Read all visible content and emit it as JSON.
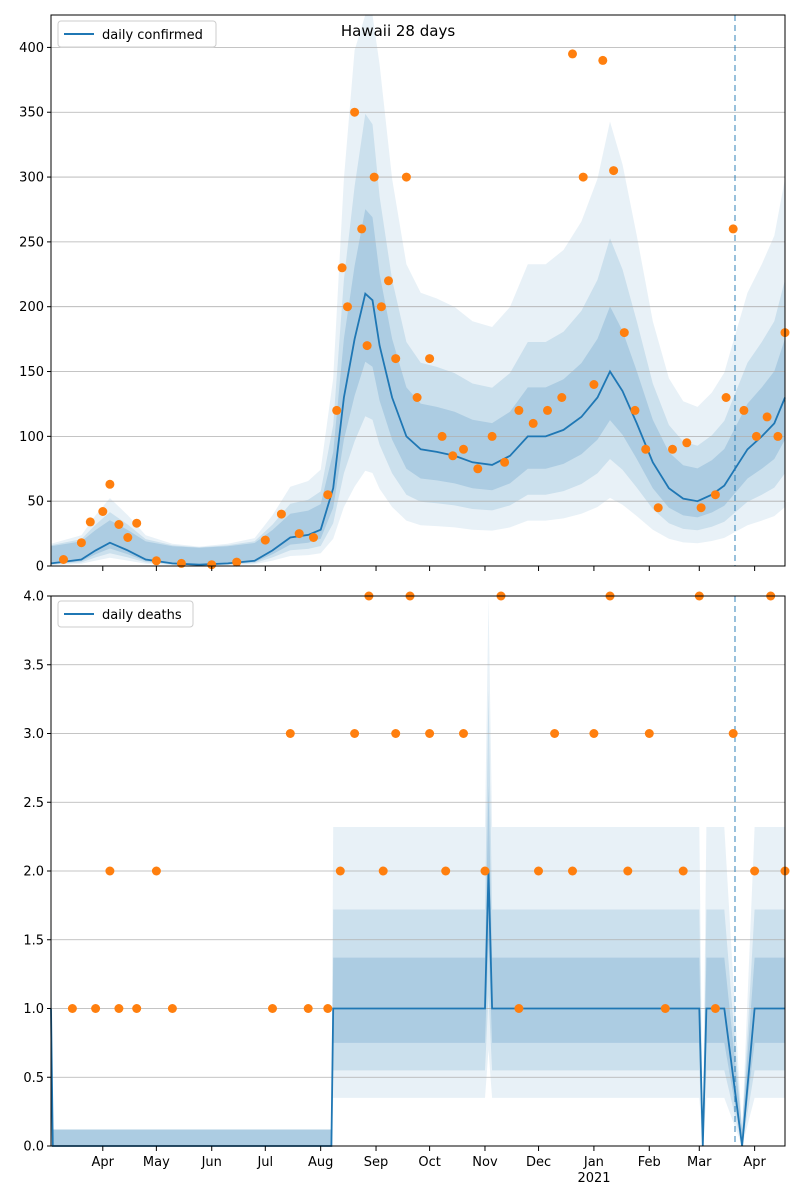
{
  "title": "Hawaii 28 days",
  "colors": {
    "line": "#1f77b4",
    "points": "#ff7f0e",
    "band": "#1f77b4",
    "grid": "#b0b0b0",
    "axis": "#000000"
  },
  "x_axis": {
    "month_ticks": [
      "Apr",
      "May",
      "Jun",
      "Jul",
      "Aug",
      "Sep",
      "Oct",
      "Nov",
      "Dec",
      "Jan",
      "Feb",
      "Mar",
      "Apr"
    ],
    "year_label": "2021",
    "date_range": [
      "2020-03-03",
      "2021-04-18"
    ],
    "forecast_start": "2021-03-21"
  },
  "chart_data": [
    {
      "type": "line",
      "legend": "daily confirmed",
      "ylim": [
        0,
        425
      ],
      "yticks": [
        0,
        50,
        100,
        150,
        200,
        250,
        300,
        350,
        400
      ],
      "grid": "horizontal",
      "legend_position": "top-left",
      "series": [
        {
          "name": "daily confirmed",
          "role": "smoothed line",
          "x": [
            "2020-03-03",
            "2020-03-20",
            "2020-03-28",
            "2020-04-05",
            "2020-04-15",
            "2020-04-25",
            "2020-05-10",
            "2020-05-25",
            "2020-06-10",
            "2020-06-25",
            "2020-07-05",
            "2020-07-15",
            "2020-07-25",
            "2020-08-01",
            "2020-08-08",
            "2020-08-14",
            "2020-08-20",
            "2020-08-26",
            "2020-08-30",
            "2020-09-03",
            "2020-09-10",
            "2020-09-18",
            "2020-09-26",
            "2020-10-05",
            "2020-10-15",
            "2020-10-25",
            "2020-11-05",
            "2020-11-15",
            "2020-11-25",
            "2020-12-05",
            "2020-12-15",
            "2020-12-25",
            "2021-01-03",
            "2021-01-10",
            "2021-01-17",
            "2021-01-25",
            "2021-02-03",
            "2021-02-12",
            "2021-02-20",
            "2021-02-28",
            "2021-03-08",
            "2021-03-15",
            "2021-03-21",
            "2021-03-28",
            "2021-04-05",
            "2021-04-12",
            "2021-04-18"
          ],
          "y": [
            2,
            5,
            12,
            18,
            12,
            5,
            2,
            1,
            2,
            4,
            12,
            22,
            24,
            28,
            60,
            130,
            175,
            210,
            205,
            170,
            130,
            100,
            90,
            88,
            85,
            80,
            78,
            85,
            100,
            100,
            105,
            115,
            130,
            150,
            135,
            110,
            80,
            60,
            52,
            50,
            55,
            62,
            75,
            90,
            100,
            110,
            130
          ]
        },
        {
          "name": "observed",
          "role": "points",
          "x": [
            "2020-03-10",
            "2020-03-20",
            "2020-03-25",
            "2020-04-01",
            "2020-04-05",
            "2020-04-10",
            "2020-04-15",
            "2020-04-20",
            "2020-05-01",
            "2020-05-15",
            "2020-06-01",
            "2020-06-15",
            "2020-07-01",
            "2020-07-10",
            "2020-07-20",
            "2020-07-28",
            "2020-08-05",
            "2020-08-10",
            "2020-08-13",
            "2020-08-16",
            "2020-08-20",
            "2020-08-24",
            "2020-08-27",
            "2020-08-31",
            "2020-09-04",
            "2020-09-08",
            "2020-09-12",
            "2020-09-18",
            "2020-09-24",
            "2020-10-01",
            "2020-10-08",
            "2020-10-14",
            "2020-10-20",
            "2020-10-28",
            "2020-11-05",
            "2020-11-12",
            "2020-11-20",
            "2020-11-28",
            "2020-12-06",
            "2020-12-14",
            "2020-12-20",
            "2020-12-26",
            "2021-01-01",
            "2021-01-06",
            "2021-01-12",
            "2021-01-18",
            "2021-01-24",
            "2021-01-30",
            "2021-02-06",
            "2021-02-14",
            "2021-02-22",
            "2021-03-02",
            "2021-03-10",
            "2021-03-16",
            "2021-03-20",
            "2021-03-26",
            "2021-04-02",
            "2021-04-08",
            "2021-04-14",
            "2021-04-18"
          ],
          "y": [
            5,
            18,
            34,
            42,
            63,
            32,
            22,
            33,
            4,
            2,
            1,
            3,
            20,
            40,
            25,
            22,
            55,
            120,
            230,
            200,
            350,
            260,
            170,
            300,
            200,
            220,
            160,
            300,
            130,
            160,
            100,
            85,
            90,
            75,
            100,
            80,
            120,
            110,
            120,
            130,
            395,
            300,
            140,
            390,
            305,
            180,
            120,
            90,
            45,
            90,
            95,
            45,
            55,
            130,
            260,
            120,
            100,
            115,
            100,
            180
          ]
        }
      ]
    },
    {
      "type": "line",
      "legend": "daily deaths",
      "ylim": [
        0,
        4
      ],
      "yticks": [
        0.0,
        0.5,
        1.0,
        1.5,
        2.0,
        2.5,
        3.0,
        3.5,
        4.0
      ],
      "grid": "horizontal",
      "legend_position": "top-left",
      "series": [
        {
          "name": "daily deaths",
          "role": "smoothed line",
          "x": [
            "2020-03-03",
            "2020-03-04",
            "2020-08-07",
            "2020-08-08",
            "2020-09-01",
            "2020-11-01",
            "2020-11-03",
            "2020-11-05",
            "2020-12-01",
            "2021-01-01",
            "2021-02-01",
            "2021-03-01",
            "2021-03-03",
            "2021-03-05",
            "2021-03-15",
            "2021-03-25",
            "2021-04-01",
            "2021-04-18"
          ],
          "y": [
            1,
            0,
            0,
            1,
            1,
            1,
            2,
            1,
            1,
            1,
            1,
            1,
            0,
            1,
            1,
            0,
            1,
            1
          ]
        },
        {
          "name": "observed",
          "role": "points",
          "x": [
            "2020-03-15",
            "2020-03-28",
            "2020-04-05",
            "2020-04-10",
            "2020-04-20",
            "2020-05-01",
            "2020-05-10",
            "2020-07-05",
            "2020-07-15",
            "2020-07-25",
            "2020-08-05",
            "2020-08-12",
            "2020-08-20",
            "2020-08-28",
            "2020-09-05",
            "2020-09-12",
            "2020-09-20",
            "2020-10-01",
            "2020-10-10",
            "2020-10-20",
            "2020-11-01",
            "2020-11-10",
            "2020-11-20",
            "2020-12-01",
            "2020-12-10",
            "2020-12-20",
            "2021-01-01",
            "2021-01-10",
            "2021-01-20",
            "2021-02-01",
            "2021-02-10",
            "2021-02-20",
            "2021-03-01",
            "2021-03-10",
            "2021-03-20",
            "2021-04-01",
            "2021-04-10",
            "2021-04-18"
          ],
          "y": [
            1,
            1,
            2,
            1,
            1,
            2,
            1,
            1,
            3,
            1,
            1,
            2,
            3,
            4,
            2,
            3,
            4,
            3,
            2,
            3,
            2,
            4,
            1,
            2,
            3,
            2,
            3,
            4,
            2,
            3,
            1,
            2,
            4,
            1,
            3,
            2,
            4,
            2
          ]
        }
      ]
    }
  ]
}
